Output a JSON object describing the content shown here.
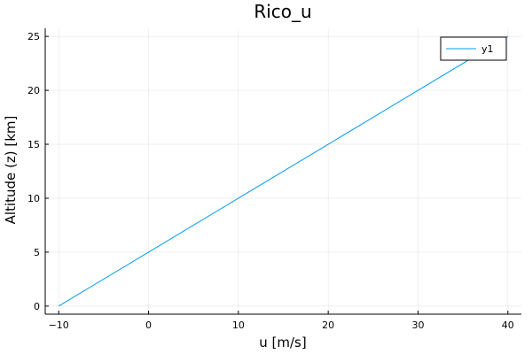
{
  "chart_data": {
    "type": "line",
    "title": "Rico_u",
    "xlabel": "u [m/s]",
    "ylabel": "Altitude (z) [km]",
    "xlim": [
      -11.5,
      41.5
    ],
    "ylim": [
      -0.75,
      25.75
    ],
    "xticks": [
      -10,
      0,
      10,
      20,
      30,
      40
    ],
    "yticks": [
      0,
      5,
      10,
      15,
      20,
      25
    ],
    "grid": true,
    "legend_position": "top-right",
    "series": [
      {
        "name": "y1",
        "color": "#009af9",
        "x": [
          -10,
          0,
          10,
          20,
          30,
          40
        ],
        "y": [
          0,
          5,
          10,
          15,
          20,
          25
        ]
      }
    ]
  }
}
